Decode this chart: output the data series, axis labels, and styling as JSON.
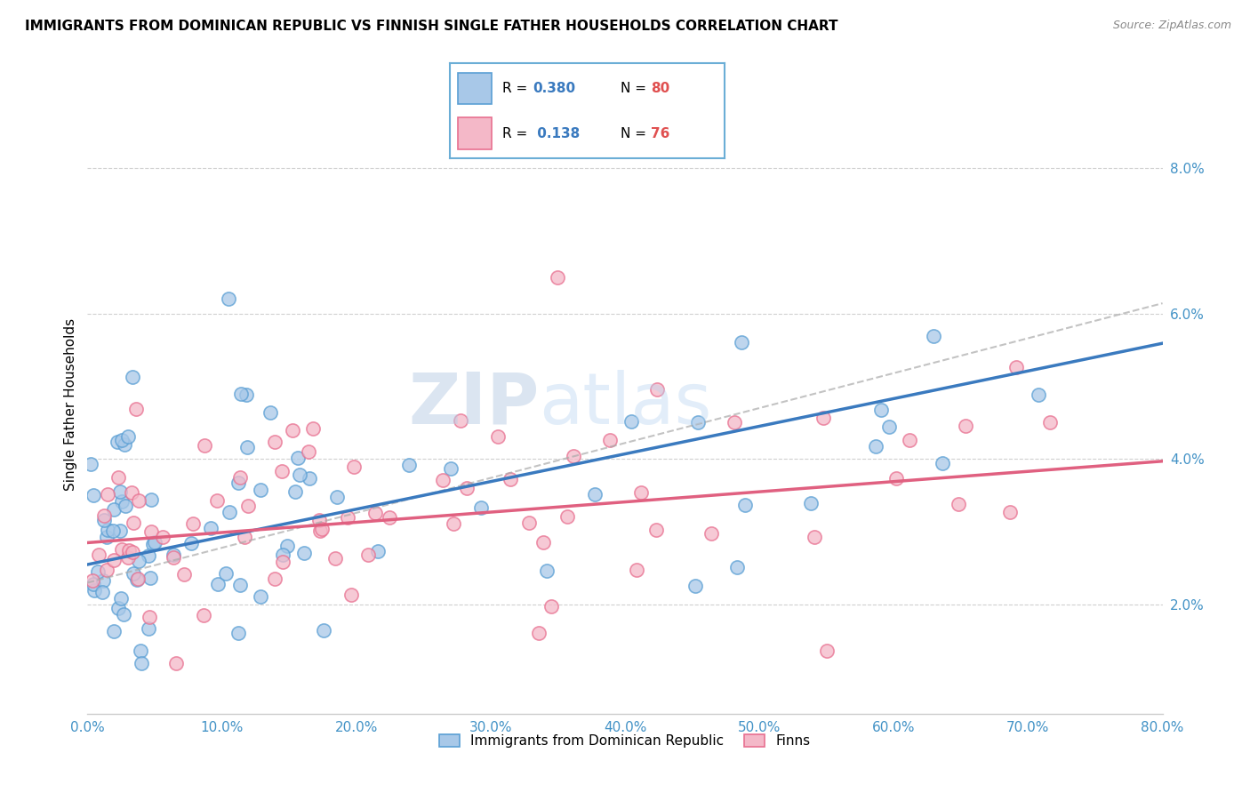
{
  "title": "IMMIGRANTS FROM DOMINICAN REPUBLIC VS FINNISH SINGLE FATHER HOUSEHOLDS CORRELATION CHART",
  "source": "Source: ZipAtlas.com",
  "ylabel": "Single Father Households",
  "xlim": [
    0.0,
    80.0
  ],
  "ylim": [
    0.5,
    9.0
  ],
  "yticks": [
    2.0,
    4.0,
    6.0,
    8.0
  ],
  "xticks": [
    0.0,
    10.0,
    20.0,
    30.0,
    40.0,
    50.0,
    60.0,
    70.0,
    80.0
  ],
  "legend_r1": "R = 0.380",
  "legend_n1": "N = 80",
  "legend_r2": "R =  0.138",
  "legend_n2": "N = 76",
  "color_blue": "#a8c8e8",
  "color_blue_edge": "#5a9fd4",
  "color_pink": "#f4b8c8",
  "color_pink_edge": "#e87090",
  "color_blue_line": "#3a7abf",
  "color_pink_line": "#e06080",
  "color_gray_dash": "#aaaaaa",
  "watermark": "ZIPAtlas",
  "legend_label1": "Immigrants from Dominican Republic",
  "legend_label2": "Finns",
  "blue_intercept": 2.5,
  "blue_slope": 0.042,
  "pink_intercept": 2.9,
  "pink_slope": 0.014,
  "marker_size": 120
}
